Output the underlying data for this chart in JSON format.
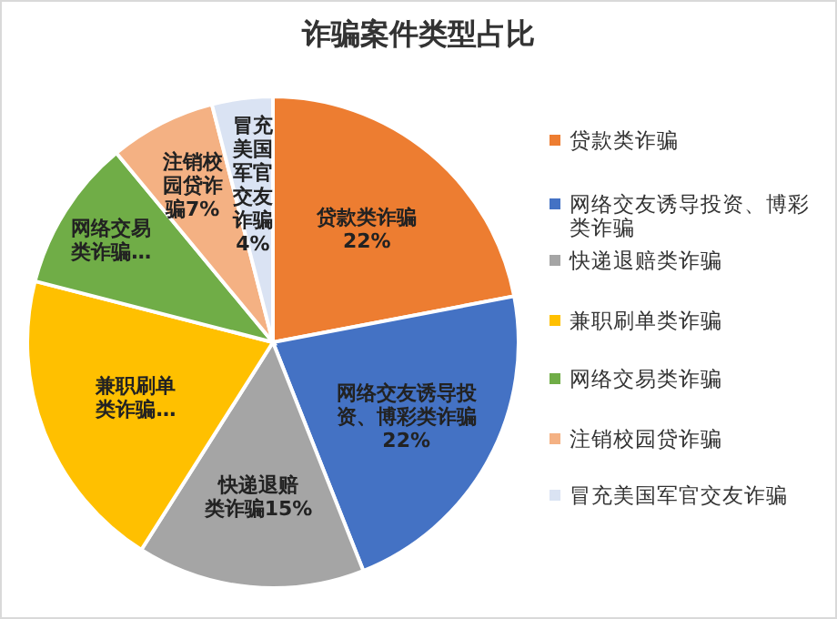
{
  "chart_data": {
    "type": "pie",
    "title": "诈骗案件类型占比",
    "categories": [
      "贷款类诈骗",
      "网络交友诱导投资、博彩类诈骗",
      "快递退赔类诈骗",
      "兼职刷单类诈骗",
      "网络交易类诈骗",
      "注销校园贷诈骗",
      "冒充美国军官交友诈骗"
    ],
    "values": [
      22,
      22,
      15,
      20,
      10,
      7,
      4
    ],
    "colors": [
      "#ed7d31",
      "#4472c4",
      "#a5a5a5",
      "#ffc000",
      "#70ad47",
      "#f4b183",
      "#dae3f3"
    ],
    "value_labels": [
      "贷款类诈骗22%",
      "网络交友诱导投资、博彩类诈骗22%",
      "快递退赔类诈骗15%",
      "兼职刷单类诈骗…",
      "网络交易类诈骗…",
      "注销校园贷诈骗7%",
      "冒充美国军官交友诈骗4%"
    ],
    "legend": "right"
  }
}
